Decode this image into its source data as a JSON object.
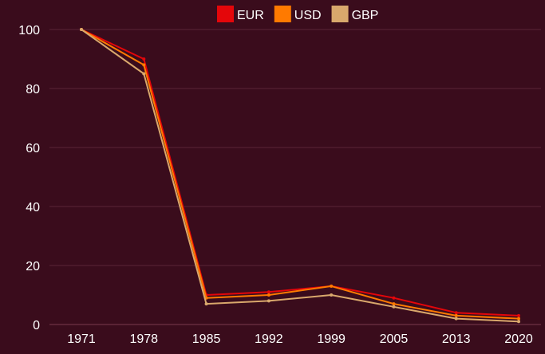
{
  "chart_data": {
    "type": "line",
    "title": "",
    "xlabel": "",
    "ylabel": "",
    "categories": [
      "1971",
      "1978",
      "1985",
      "1992",
      "1999",
      "2005",
      "2013",
      "2020"
    ],
    "y_ticks": [
      "0",
      "20",
      "40",
      "60",
      "80",
      "100"
    ],
    "ylim": [
      0,
      100
    ],
    "grid": "horizontal",
    "legend_position": "top-center",
    "series": [
      {
        "name": "EUR",
        "color": "#e4060a",
        "values": [
          100,
          90,
          10,
          11,
          13,
          9,
          4,
          3
        ]
      },
      {
        "name": "USD",
        "color": "#ff7a00",
        "values": [
          100,
          88,
          9,
          10,
          13,
          7,
          3,
          2
        ]
      },
      {
        "name": "GBP",
        "color": "#d9a86c",
        "values": [
          100,
          85,
          7,
          8,
          10,
          6,
          2,
          1
        ]
      }
    ]
  },
  "colors": {
    "background": "#3a0c1c",
    "gridline": "#5a2336",
    "axis": "#7a3a4e"
  }
}
